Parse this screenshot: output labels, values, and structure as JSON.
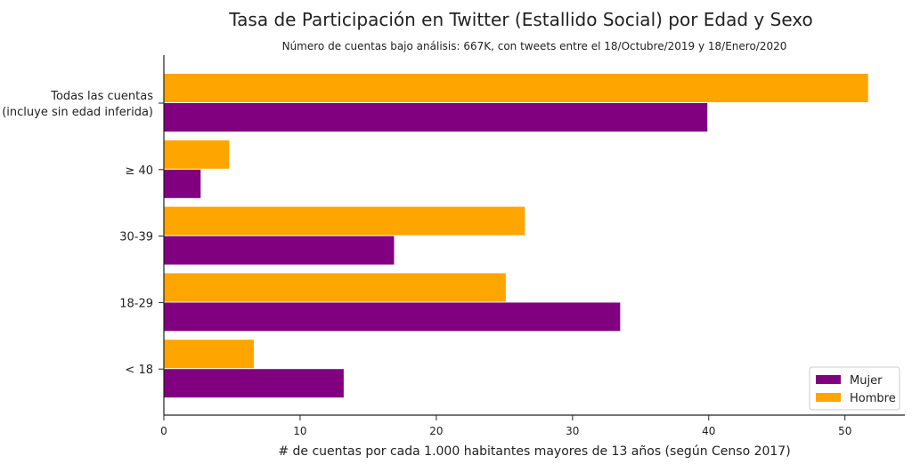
{
  "chart_data": {
    "type": "bar",
    "orientation": "horizontal",
    "title": "Tasa de Participación en Twitter (Estallido Social) por Edad y Sexo",
    "subtitle": "Número de cuentas bajo análisis: 667K, con tweets entre el 18/Octubre/2019 y 18/Enero/2020",
    "xlabel": "# de cuentas por cada 1.000 habitantes mayores de 13 años (según Censo 2017)",
    "ylabel": "",
    "categories": [
      [
        "Todas las cuentas",
        "(incluye sin edad inferida)"
      ],
      [
        "≥  40"
      ],
      [
        "30-39"
      ],
      [
        "18-29"
      ],
      [
        "< 18"
      ]
    ],
    "xlim": [
      0,
      54.4
    ],
    "xticks": [
      0,
      10,
      20,
      30,
      40,
      50
    ],
    "grid": false,
    "legend_position": "bottom-right",
    "series": [
      {
        "name": "Hombre",
        "color": "#FFA500",
        "values": [
          51.7,
          4.8,
          26.5,
          25.1,
          6.6
        ]
      },
      {
        "name": "Mujer",
        "color": "#800080",
        "values": [
          39.9,
          2.7,
          16.9,
          33.5,
          13.2
        ]
      }
    ],
    "legend_order": [
      "Mujer",
      "Hombre"
    ]
  }
}
